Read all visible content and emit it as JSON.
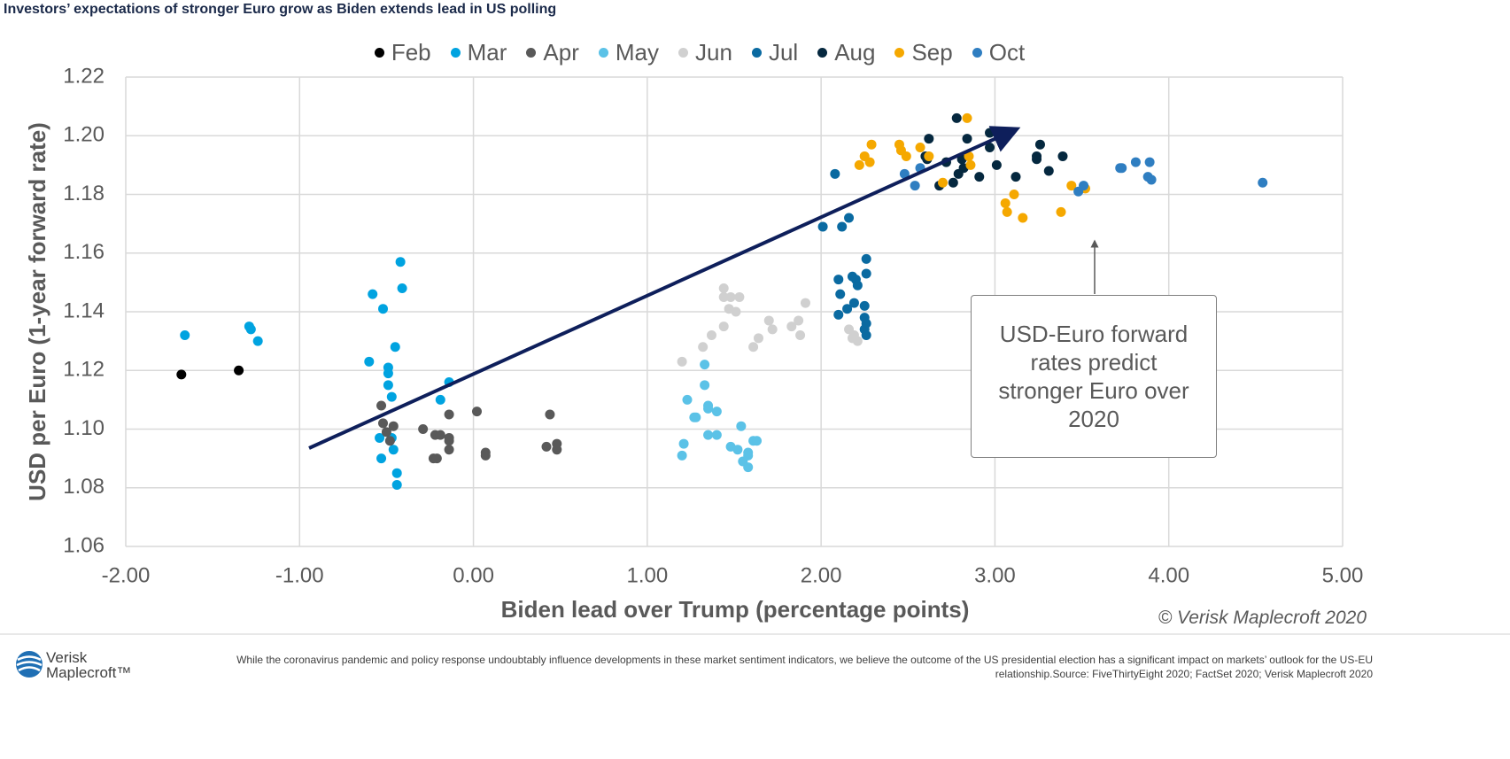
{
  "title": "Investors’ expectations of stronger Euro grow as Biden extends lead in US polling",
  "chart_data": {
    "type": "scatter",
    "xlabel": "Biden lead over Trump (percentage points)",
    "ylabel": "USD per Euro (1-year forward rate)",
    "xlim": [
      -2,
      5
    ],
    "xticks": [
      {
        "value": -2,
        "label": "-2.00"
      },
      {
        "value": -1,
        "label": "-1.00"
      },
      {
        "value": 0,
        "label": "0.00"
      },
      {
        "value": 1,
        "label": "1.00"
      },
      {
        "value": 2,
        "label": "2.00"
      },
      {
        "value": 3,
        "label": "3.00"
      },
      {
        "value": 4,
        "label": "4.00"
      },
      {
        "value": 5,
        "label": "5.00"
      }
    ],
    "ylim": [
      1.06,
      1.22
    ],
    "yticks": [
      1.06,
      1.08,
      {
        "value": 1.1,
        "label": "1.10"
      },
      1.12,
      1.14,
      1.16,
      1.18,
      {
        "value": 1.2,
        "label": "1.20"
      },
      1.22
    ],
    "grid": true,
    "series": [
      {
        "name": "Feb",
        "color": "#000000",
        "x": [
          -1.68,
          -1.35
        ],
        "values": [
          1.1186,
          1.12
        ]
      },
      {
        "name": "Mar",
        "color": "#00a3e0",
        "x": [
          -1.66,
          -1.29,
          -1.28,
          -1.24,
          -0.58,
          -0.52,
          -0.42,
          -0.41,
          -0.6,
          -0.45,
          -0.49,
          -0.49,
          -0.49,
          -0.47,
          -0.14,
          -0.19,
          -0.54,
          -0.47,
          -0.46,
          -0.53,
          -0.44,
          -0.44
        ],
        "values": [
          1.132,
          1.135,
          1.134,
          1.13,
          1.146,
          1.141,
          1.157,
          1.148,
          1.123,
          1.128,
          1.121,
          1.119,
          1.115,
          1.111,
          1.116,
          1.11,
          1.097,
          1.097,
          1.093,
          1.09,
          1.085,
          1.081
        ]
      },
      {
        "name": "Apr",
        "color": "#595959",
        "x": [
          -0.53,
          -0.52,
          -0.46,
          -0.5,
          -0.48,
          -0.29,
          -0.22,
          -0.19,
          -0.14,
          -0.14,
          -0.14,
          -0.23,
          -0.21,
          -0.14,
          0.02,
          0.07,
          0.07,
          0.44,
          0.42,
          0.48,
          0.48
        ],
        "values": [
          1.108,
          1.102,
          1.101,
          1.099,
          1.096,
          1.1,
          1.098,
          1.098,
          1.097,
          1.096,
          1.093,
          1.09,
          1.09,
          1.105,
          1.106,
          1.092,
          1.091,
          1.105,
          1.094,
          1.095,
          1.093
        ]
      },
      {
        "name": "May",
        "color": "#5bc2e7",
        "x": [
          1.2,
          1.21,
          1.23,
          1.33,
          1.33,
          1.27,
          1.28,
          1.35,
          1.35,
          1.4,
          1.35,
          1.4,
          1.48,
          1.52,
          1.54,
          1.55,
          1.58,
          1.58,
          1.58,
          1.61,
          1.63
        ],
        "values": [
          1.091,
          1.095,
          1.11,
          1.122,
          1.115,
          1.104,
          1.104,
          1.108,
          1.107,
          1.106,
          1.098,
          1.098,
          1.094,
          1.093,
          1.101,
          1.089,
          1.091,
          1.092,
          1.087,
          1.096,
          1.096
        ]
      },
      {
        "name": "Jun",
        "color": "#d0d0d0",
        "x": [
          1.2,
          1.32,
          1.37,
          1.44,
          1.44,
          1.44,
          1.48,
          1.47,
          1.51,
          1.53,
          1.61,
          1.64,
          1.7,
          1.72,
          1.83,
          1.87,
          1.88,
          1.91,
          2.16,
          2.18,
          2.21,
          2.19
        ],
        "values": [
          1.123,
          1.128,
          1.132,
          1.135,
          1.148,
          1.145,
          1.145,
          1.141,
          1.14,
          1.145,
          1.128,
          1.131,
          1.137,
          1.134,
          1.135,
          1.137,
          1.132,
          1.143,
          1.134,
          1.131,
          1.13,
          1.132
        ]
      },
      {
        "name": "Jul",
        "color": "#0a6aa1",
        "x": [
          2.01,
          2.12,
          2.16,
          2.1,
          2.11,
          2.1,
          2.15,
          2.18,
          2.2,
          2.21,
          2.26,
          2.26,
          2.19,
          2.25,
          2.25,
          2.26,
          2.25,
          2.26,
          2.08
        ],
        "values": [
          1.169,
          1.169,
          1.172,
          1.151,
          1.146,
          1.139,
          1.141,
          1.152,
          1.151,
          1.149,
          1.153,
          1.158,
          1.143,
          1.142,
          1.138,
          1.136,
          1.134,
          1.132,
          1.187
        ]
      },
      {
        "name": "Aug",
        "color": "#05283f",
        "x": [
          2.62,
          2.78,
          2.84,
          2.97,
          2.97,
          2.6,
          2.61,
          2.72,
          2.81,
          2.82,
          2.79,
          2.68,
          2.76,
          2.91,
          3.01,
          3.12,
          3.26,
          3.24,
          3.24,
          3.31,
          3.39
        ],
        "values": [
          1.199,
          1.206,
          1.199,
          1.201,
          1.196,
          1.193,
          1.192,
          1.191,
          1.192,
          1.189,
          1.187,
          1.183,
          1.184,
          1.186,
          1.19,
          1.186,
          1.197,
          1.193,
          1.192,
          1.188,
          1.193
        ]
      },
      {
        "name": "Sep",
        "color": "#f5a800",
        "x": [
          2.84,
          2.29,
          2.45,
          2.25,
          2.46,
          2.49,
          2.28,
          2.22,
          2.57,
          2.62,
          2.85,
          2.86,
          2.7,
          3.11,
          3.06,
          3.07,
          3.16,
          3.44,
          3.52,
          3.38
        ],
        "values": [
          1.206,
          1.197,
          1.197,
          1.193,
          1.195,
          1.193,
          1.191,
          1.19,
          1.196,
          1.193,
          1.193,
          1.19,
          1.184,
          1.18,
          1.177,
          1.174,
          1.172,
          1.183,
          1.182,
          1.174
        ]
      },
      {
        "name": "Oct",
        "color": "#2f7ec1",
        "x": [
          2.48,
          2.57,
          2.54,
          3.48,
          3.51,
          3.72,
          3.73,
          3.81,
          3.89,
          3.88,
          3.9,
          4.54
        ],
        "values": [
          1.187,
          1.189,
          1.183,
          1.181,
          1.183,
          1.189,
          1.189,
          1.191,
          1.191,
          1.186,
          1.185,
          1.184
        ]
      }
    ]
  },
  "annotation": "USD-Euro forward rates predict stronger Euro over 2020",
  "copyright": "© Verisk Maplecroft 2020",
  "footer": {
    "logo": [
      "Verisk",
      "Maplecroft™"
    ],
    "note": [
      "While the coronavirus pandemic and policy response undoubtably influence developments in these market sentiment indicators, we believe the outcome of the US presidential election has a significant impact on markets’ outlook for the US-EU",
      "relationship.Source: FiveThirtyEight 2020; FactSet 2020; Verisk Maplecroft 2020"
    ]
  }
}
